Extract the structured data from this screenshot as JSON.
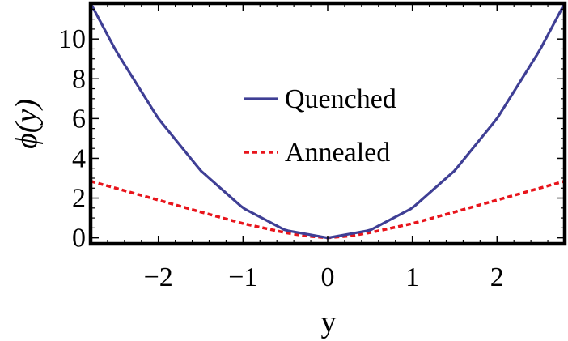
{
  "chart_data": {
    "type": "line",
    "xlabel": "y",
    "ylabel": "ϕ(y)",
    "xlim": [
      -2.8,
      2.8
    ],
    "ylim": [
      -0.3,
      11.8
    ],
    "x_ticks": [
      -2,
      -1,
      0,
      1,
      2
    ],
    "x_tick_labels": [
      "−2",
      "−1",
      "0",
      "1",
      "2"
    ],
    "y_ticks": [
      0,
      2,
      4,
      6,
      8,
      10
    ],
    "y_tick_labels": [
      "0",
      "2",
      "4",
      "6",
      "8",
      "10"
    ],
    "grid": false,
    "legend_position": "center",
    "series": [
      {
        "name": "Quenched",
        "color": "#3f3f95",
        "style": "solid",
        "x": [
          -2.8,
          -2.5,
          -2.0,
          -1.5,
          -1.0,
          -0.5,
          0.0,
          0.5,
          1.0,
          1.5,
          2.0,
          2.5,
          2.8
        ],
        "y": [
          11.8,
          9.4,
          6.0,
          3.38,
          1.5,
          0.38,
          0.0,
          0.38,
          1.5,
          3.38,
          6.0,
          9.4,
          11.8
        ]
      },
      {
        "name": "Annealed",
        "color": "#e8141b",
        "style": "dashed",
        "x": [
          -2.8,
          -2.0,
          -1.5,
          -1.0,
          -0.5,
          -0.25,
          0.0,
          0.25,
          0.5,
          1.0,
          1.5,
          2.0,
          2.8
        ],
        "y": [
          2.85,
          1.9,
          1.3,
          0.72,
          0.26,
          0.09,
          0.0,
          0.09,
          0.26,
          0.72,
          1.3,
          1.9,
          2.85
        ]
      }
    ]
  }
}
